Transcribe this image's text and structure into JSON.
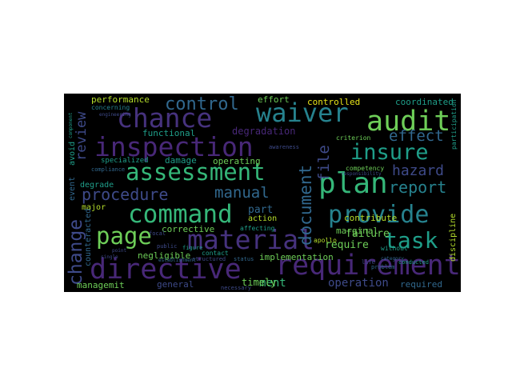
{
  "wordcloud": {
    "colors": {
      "purple_dark": "#46327e",
      "purple": "#482878",
      "indigo": "#3e4a89",
      "blue": "#31688e",
      "teal": "#26828e",
      "green_teal": "#1f9e89",
      "green": "#35b779",
      "light_green": "#6ece58",
      "yellow_green": "#b5de2b",
      "yellow": "#e8e419"
    },
    "words": [
      {
        "text": "requirement",
        "color": "#482878"
      },
      {
        "text": "directive",
        "color": "#482878"
      },
      {
        "text": "assessment",
        "color": "#35b779"
      },
      {
        "text": "inspection",
        "color": "#482878"
      },
      {
        "text": "command",
        "color": "#35b779"
      },
      {
        "text": "material",
        "color": "#46327e"
      },
      {
        "text": "provide",
        "color": "#26828e"
      },
      {
        "text": "waiver",
        "color": "#26828e"
      },
      {
        "text": "audit",
        "color": "#6ece58"
      },
      {
        "text": "chance",
        "color": "#46327e"
      },
      {
        "text": "plan",
        "color": "#35b779"
      },
      {
        "text": "insure",
        "color": "#1f9e89"
      },
      {
        "text": "page",
        "color": "#6ece58"
      },
      {
        "text": "task",
        "color": "#1f9e89"
      },
      {
        "text": "procedure",
        "color": "#3e4a89"
      },
      {
        "text": "control",
        "color": "#31688e"
      },
      {
        "text": "document",
        "color": "#31688e"
      },
      {
        "text": "change",
        "color": "#3e4a89"
      },
      {
        "text": "manual",
        "color": "#31688e"
      },
      {
        "text": "report",
        "color": "#26828e"
      },
      {
        "text": "effect",
        "color": "#31688e"
      },
      {
        "text": "hazard",
        "color": "#3e4a89"
      },
      {
        "text": "review",
        "color": "#3e4a89"
      },
      {
        "text": "file",
        "color": "#3e4a89"
      },
      {
        "text": "operation",
        "color": "#3e4a89"
      },
      {
        "text": "ment",
        "color": "#35b779"
      },
      {
        "text": "part",
        "color": "#31688e"
      },
      {
        "text": "require",
        "color": "#6ece58"
      },
      {
        "text": "implementation",
        "color": "#6ece58"
      },
      {
        "text": "managemit",
        "color": "#6ece58"
      },
      {
        "text": "general",
        "color": "#3e4a89"
      },
      {
        "text": "timely",
        "color": "#6ece58"
      },
      {
        "text": "required",
        "color": "#31688e"
      },
      {
        "text": "failure",
        "color": "#6ece58"
      },
      {
        "text": "marginal",
        "color": "#6ece58"
      },
      {
        "text": "contribute",
        "color": "#b5de2b"
      },
      {
        "text": "negligible",
        "color": "#6ece58"
      },
      {
        "text": "corrective",
        "color": "#6ece58"
      },
      {
        "text": "action",
        "color": "#b5de2b"
      },
      {
        "text": "damage",
        "color": "#1f9e89"
      },
      {
        "text": "degradation",
        "color": "#482878"
      },
      {
        "text": "functional",
        "color": "#1f9e89"
      },
      {
        "text": "operating",
        "color": "#6ece58"
      },
      {
        "text": "performance",
        "color": "#b5de2b"
      },
      {
        "text": "effort",
        "color": "#6ece58"
      },
      {
        "text": "controlled",
        "color": "#e8e419"
      },
      {
        "text": "coordinated",
        "color": "#1f9e89"
      },
      {
        "text": "major",
        "color": "#b5de2b"
      },
      {
        "text": "degrade",
        "color": "#1f9e89"
      },
      {
        "text": "event",
        "color": "#31688e"
      },
      {
        "text": "avoid",
        "color": "#1f9e89"
      },
      {
        "text": "counteracted",
        "color": "#31688e"
      },
      {
        "text": "specialized",
        "color": "#1f9e89"
      },
      {
        "text": "discipline",
        "color": "#b5de2b"
      },
      {
        "text": "concerning",
        "color": "#26828e"
      },
      {
        "text": "criterion",
        "color": "#6ece58"
      },
      {
        "text": "competency",
        "color": "#6ece58"
      },
      {
        "text": "apollo",
        "color": "#b5de2b"
      },
      {
        "text": "participation",
        "color": "#1f9e89"
      },
      {
        "text": "without",
        "color": "#1f9e89"
      },
      {
        "text": "affecting",
        "color": "#1f9e89"
      },
      {
        "text": "contact",
        "color": "#1f9e89"
      },
      {
        "text": "necessary",
        "color": "#3e4a89"
      },
      {
        "text": "conducted",
        "color": "#1f9e89"
      },
      {
        "text": "compliance",
        "color": "#31688e"
      },
      {
        "text": "figure",
        "color": "#1f9e89"
      },
      {
        "text": "structured",
        "color": "#3e4a89"
      },
      {
        "text": "public",
        "color": "#3e4a89"
      },
      {
        "text": "awareness",
        "color": "#3e4a89"
      },
      {
        "text": "focal",
        "color": "#3e4a89"
      },
      {
        "text": "status",
        "color": "#31688e"
      },
      {
        "text": "responsibility",
        "color": "#3e4a89"
      },
      {
        "text": "life",
        "color": "#3e4a89"
      },
      {
        "text": "problem",
        "color": "#31688e"
      },
      {
        "text": "single",
        "color": "#3e4a89"
      },
      {
        "text": "establishment",
        "color": "#31688e"
      },
      {
        "text": "engineering",
        "color": "#3e4a89"
      },
      {
        "text": "component",
        "color": "#1f9e89"
      },
      {
        "text": "category",
        "color": "#31688e"
      },
      {
        "text": "point",
        "color": "#3e4a89"
      }
    ]
  }
}
